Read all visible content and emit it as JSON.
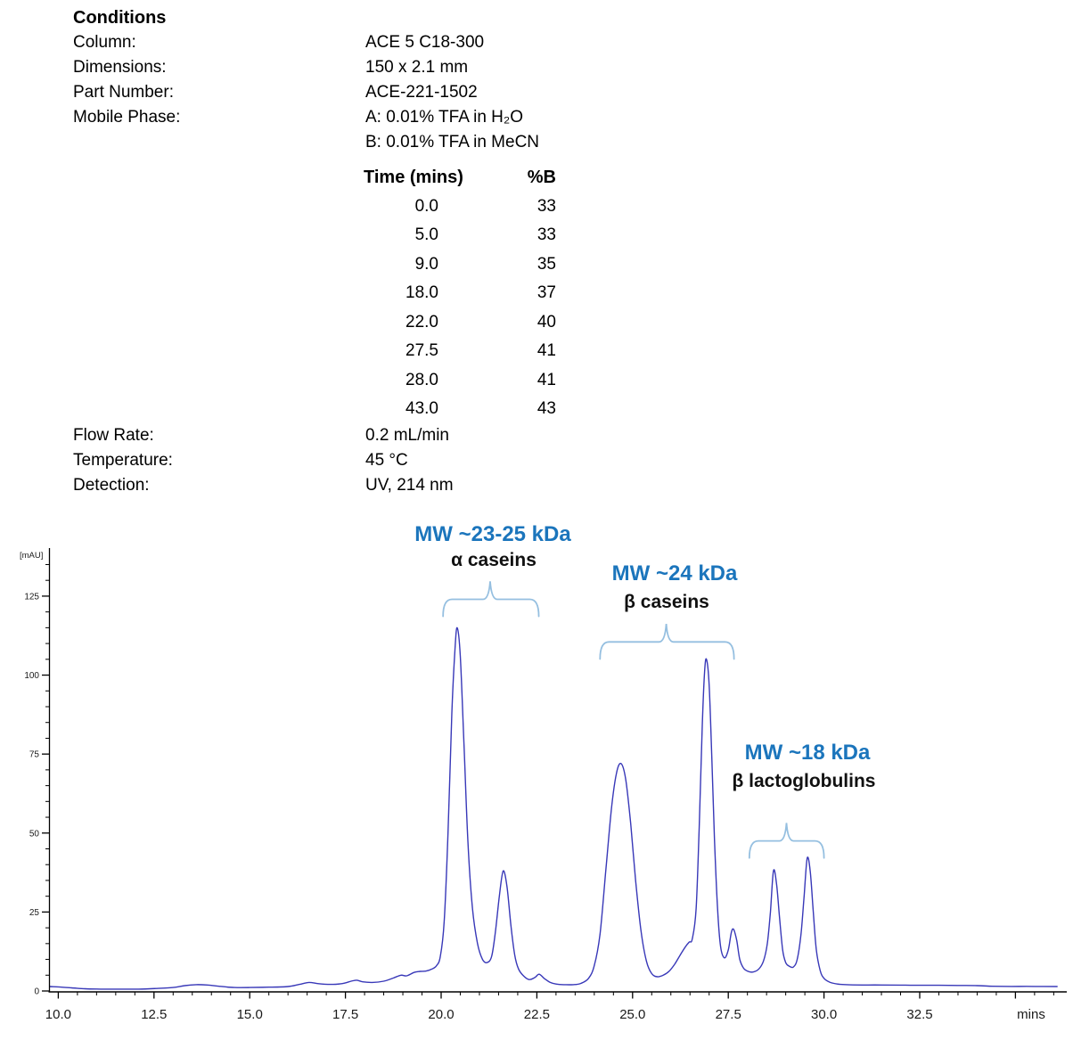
{
  "conditions": {
    "title": "Conditions",
    "rows": [
      {
        "label": "Column:",
        "value": "ACE 5 C18-300"
      },
      {
        "label": "Dimensions:",
        "value": "150 x 2.1 mm"
      },
      {
        "label": "Part Number:",
        "value": "ACE-221-1502"
      },
      {
        "label": "Mobile Phase:",
        "value": "A: 0.01% TFA in H₂O"
      },
      {
        "label": "",
        "value": "B: 0.01% TFA in MeCN"
      }
    ],
    "gradient_table": {
      "col_time": "Time (mins)",
      "col_b": "%B",
      "rows": [
        [
          "0.0",
          "33"
        ],
        [
          "5.0",
          "33"
        ],
        [
          "9.0",
          "35"
        ],
        [
          "18.0",
          "37"
        ],
        [
          "22.0",
          "40"
        ],
        [
          "27.5",
          "41"
        ],
        [
          "28.0",
          "41"
        ],
        [
          "43.0",
          "43"
        ]
      ]
    },
    "rows2": [
      {
        "label": "Flow Rate:",
        "value": "0.2 mL/min"
      },
      {
        "label": "Temperature:",
        "value": "45 °C"
      },
      {
        "label": "Detection:",
        "value": "UV, 214 nm"
      }
    ]
  },
  "chart_data": {
    "type": "line",
    "title": "",
    "xlabel": "mins",
    "ylabel": "[mAU]",
    "xlim": [
      10,
      36.2
    ],
    "ylim": [
      0,
      140
    ],
    "grid": false,
    "trace_color": "#3838b8",
    "axis_color": "#000000",
    "annotation_blue": "#1b75bc",
    "brace_color": "#95bfe0",
    "x_tick_label_values": [
      10,
      12.5,
      15,
      17.5,
      20,
      22.5,
      25,
      27.5,
      30,
      32.5
    ],
    "x_tick_labels": [
      "10.0",
      "12.5",
      "15.0",
      "17.5",
      "20.0",
      "22.5",
      "25.0",
      "27.5",
      "30.0",
      "32.5"
    ],
    "x_unit_label": "mins",
    "y_ticks": [
      0,
      25,
      50,
      75,
      100,
      125
    ],
    "y_axis_label": "[mAU]",
    "peaks": [
      {
        "t": 20.4,
        "mAU": 115,
        "assignment": "α caseins"
      },
      {
        "t": 21.6,
        "mAU": 38,
        "assignment": "α caseins"
      },
      {
        "t": 24.7,
        "mAU": 72,
        "assignment": "β caseins"
      },
      {
        "t": 26.9,
        "mAU": 105,
        "assignment": "β caseins"
      },
      {
        "t": 27.6,
        "mAU": 20,
        "assignment": ""
      },
      {
        "t": 28.7,
        "mAU": 38,
        "assignment": "β lactoglobulins"
      },
      {
        "t": 29.6,
        "mAU": 42,
        "assignment": "β lactoglobulins"
      }
    ],
    "groups": [
      {
        "mw": "MW ~23-25 kDa",
        "protein": "α caseins",
        "t_start": 20.05,
        "t_end": 22.55,
        "tip_t": 21.28,
        "brace_y": 124.0
      },
      {
        "mw": "MW ~24 kDa",
        "protein": "β caseins",
        "t_start": 24.15,
        "t_end": 27.65,
        "tip_t": 25.88,
        "brace_y": 110.5
      },
      {
        "mw": "MW ~18 kDa",
        "protein": "β lactoglobulins",
        "t_start": 28.05,
        "t_end": 30.0,
        "tip_t": 29.02,
        "brace_y": 47.5
      }
    ],
    "trace": [
      [
        9.78,
        1.4
      ],
      [
        10.0,
        1.3
      ],
      [
        10.35,
        1.0
      ],
      [
        10.7,
        0.7
      ],
      [
        11.1,
        0.6
      ],
      [
        11.6,
        0.6
      ],
      [
        12.1,
        0.6
      ],
      [
        12.55,
        0.8
      ],
      [
        13.0,
        1.1
      ],
      [
        13.3,
        1.7
      ],
      [
        13.6,
        2.0
      ],
      [
        13.9,
        1.9
      ],
      [
        14.2,
        1.5
      ],
      [
        14.6,
        1.1
      ],
      [
        15.0,
        1.1
      ],
      [
        15.5,
        1.2
      ],
      [
        16.0,
        1.4
      ],
      [
        16.3,
        2.1
      ],
      [
        16.55,
        2.7
      ],
      [
        16.8,
        2.3
      ],
      [
        17.1,
        2.1
      ],
      [
        17.4,
        2.3
      ],
      [
        17.65,
        3.1
      ],
      [
        17.8,
        3.4
      ],
      [
        17.95,
        2.9
      ],
      [
        18.2,
        2.7
      ],
      [
        18.5,
        3.1
      ],
      [
        18.75,
        4.1
      ],
      [
        18.95,
        5.0
      ],
      [
        19.1,
        4.8
      ],
      [
        19.3,
        5.9
      ],
      [
        19.45,
        6.2
      ],
      [
        19.6,
        6.3
      ],
      [
        19.75,
        6.9
      ],
      [
        19.88,
        8.0
      ],
      [
        19.98,
        11
      ],
      [
        20.08,
        22
      ],
      [
        20.18,
        50
      ],
      [
        20.28,
        88
      ],
      [
        20.36,
        108
      ],
      [
        20.42,
        115
      ],
      [
        20.5,
        106
      ],
      [
        20.6,
        77
      ],
      [
        20.7,
        47
      ],
      [
        20.82,
        26
      ],
      [
        20.95,
        15
      ],
      [
        21.08,
        10
      ],
      [
        21.2,
        9.0
      ],
      [
        21.32,
        11
      ],
      [
        21.42,
        19
      ],
      [
        21.52,
        30
      ],
      [
        21.62,
        38
      ],
      [
        21.72,
        33
      ],
      [
        21.82,
        21
      ],
      [
        21.92,
        11.5
      ],
      [
        22.02,
        7
      ],
      [
        22.15,
        4.8
      ],
      [
        22.3,
        3.6
      ],
      [
        22.45,
        4.3
      ],
      [
        22.56,
        5.3
      ],
      [
        22.7,
        3.9
      ],
      [
        22.85,
        2.7
      ],
      [
        23.0,
        2.2
      ],
      [
        23.2,
        2.0
      ],
      [
        23.45,
        2.0
      ],
      [
        23.65,
        2.4
      ],
      [
        23.85,
        4.0
      ],
      [
        24.0,
        8
      ],
      [
        24.15,
        18
      ],
      [
        24.3,
        38
      ],
      [
        24.45,
        58
      ],
      [
        24.58,
        69
      ],
      [
        24.7,
        72
      ],
      [
        24.82,
        67
      ],
      [
        24.95,
        53
      ],
      [
        25.08,
        35
      ],
      [
        25.22,
        19
      ],
      [
        25.36,
        9.5
      ],
      [
        25.5,
        5.5
      ],
      [
        25.65,
        4.5
      ],
      [
        25.8,
        5.0
      ],
      [
        25.95,
        6.2
      ],
      [
        26.1,
        8.5
      ],
      [
        26.25,
        11.5
      ],
      [
        26.38,
        14
      ],
      [
        26.48,
        15.5
      ],
      [
        26.56,
        16.5
      ],
      [
        26.66,
        26
      ],
      [
        26.74,
        52
      ],
      [
        26.82,
        84
      ],
      [
        26.88,
        101
      ],
      [
        26.93,
        105
      ],
      [
        27.0,
        97
      ],
      [
        27.07,
        74
      ],
      [
        27.14,
        48
      ],
      [
        27.22,
        26
      ],
      [
        27.3,
        14
      ],
      [
        27.4,
        10.5
      ],
      [
        27.5,
        13
      ],
      [
        27.58,
        18.5
      ],
      [
        27.64,
        19.5
      ],
      [
        27.72,
        16
      ],
      [
        27.8,
        10
      ],
      [
        27.9,
        7.2
      ],
      [
        28.02,
        6.2
      ],
      [
        28.15,
        6.0
      ],
      [
        28.3,
        7.0
      ],
      [
        28.42,
        9.5
      ],
      [
        28.52,
        15
      ],
      [
        28.6,
        25
      ],
      [
        28.68,
        38
      ],
      [
        28.76,
        34
      ],
      [
        28.84,
        23
      ],
      [
        28.92,
        13
      ],
      [
        29.0,
        9
      ],
      [
        29.1,
        7.8
      ],
      [
        29.2,
        7.6
      ],
      [
        29.3,
        10
      ],
      [
        29.4,
        18
      ],
      [
        29.48,
        30
      ],
      [
        29.56,
        42
      ],
      [
        29.64,
        38
      ],
      [
        29.72,
        25
      ],
      [
        29.8,
        13
      ],
      [
        29.9,
        6.5
      ],
      [
        30.0,
        4
      ],
      [
        30.15,
        2.8
      ],
      [
        30.35,
        2.2
      ],
      [
        30.6,
        2.0
      ],
      [
        31.0,
        1.9
      ],
      [
        31.5,
        1.9
      ],
      [
        32.0,
        1.85
      ],
      [
        32.5,
        1.8
      ],
      [
        33.0,
        1.8
      ],
      [
        33.5,
        1.75
      ],
      [
        34.0,
        1.7
      ],
      [
        34.4,
        1.5
      ],
      [
        34.9,
        1.45
      ],
      [
        35.5,
        1.45
      ],
      [
        36.1,
        1.4
      ]
    ]
  }
}
